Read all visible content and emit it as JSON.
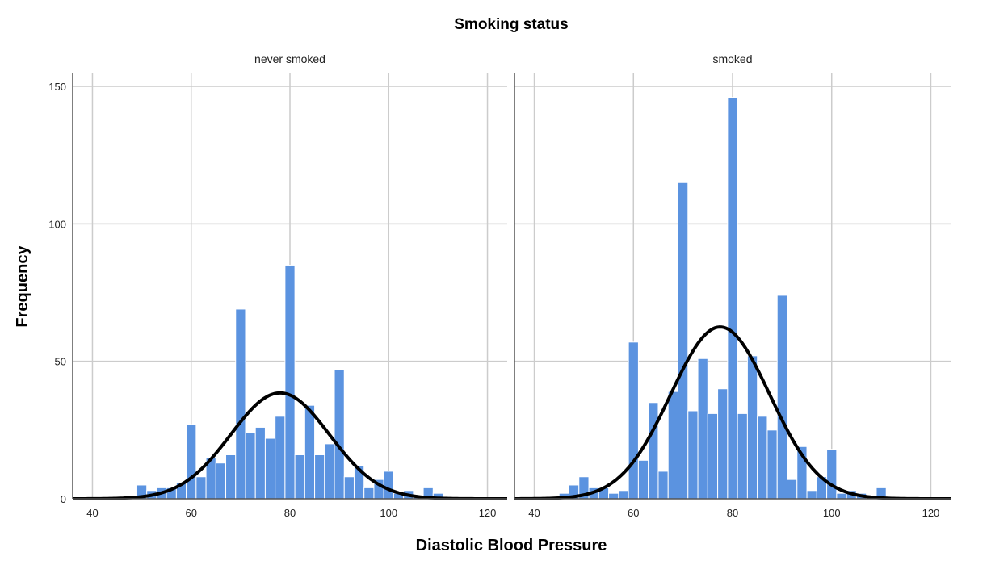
{
  "chart_data": {
    "type": "bar",
    "title": "Smoking status",
    "xlabel": "Diastolic Blood Pressure",
    "ylabel": "Frequency",
    "xlim": [
      36,
      124
    ],
    "ylim": [
      0,
      155
    ],
    "x_ticks": [
      40,
      60,
      80,
      100,
      120
    ],
    "y_ticks": [
      0,
      50,
      100,
      150
    ],
    "bin_width": 2,
    "grid": true,
    "colors": {
      "bar": "#5b93e0",
      "bar_edge": "#ffffff",
      "curve": "#000000",
      "grid": "#cccccc",
      "axis": "#555555"
    },
    "panels": [
      {
        "label": "never smoked",
        "bins": [
          {
            "x": 50,
            "count": 5
          },
          {
            "x": 52,
            "count": 3
          },
          {
            "x": 54,
            "count": 4
          },
          {
            "x": 56,
            "count": 4
          },
          {
            "x": 58,
            "count": 6
          },
          {
            "x": 60,
            "count": 27
          },
          {
            "x": 62,
            "count": 8
          },
          {
            "x": 64,
            "count": 15
          },
          {
            "x": 66,
            "count": 13
          },
          {
            "x": 68,
            "count": 16
          },
          {
            "x": 70,
            "count": 69
          },
          {
            "x": 72,
            "count": 24
          },
          {
            "x": 74,
            "count": 26
          },
          {
            "x": 76,
            "count": 22
          },
          {
            "x": 78,
            "count": 30
          },
          {
            "x": 80,
            "count": 85
          },
          {
            "x": 82,
            "count": 16
          },
          {
            "x": 84,
            "count": 34
          },
          {
            "x": 86,
            "count": 16
          },
          {
            "x": 88,
            "count": 20
          },
          {
            "x": 90,
            "count": 47
          },
          {
            "x": 92,
            "count": 8
          },
          {
            "x": 94,
            "count": 12
          },
          {
            "x": 96,
            "count": 4
          },
          {
            "x": 98,
            "count": 7
          },
          {
            "x": 100,
            "count": 10
          },
          {
            "x": 102,
            "count": 2
          },
          {
            "x": 104,
            "count": 3
          },
          {
            "x": 106,
            "count": 1
          },
          {
            "x": 108,
            "count": 4
          },
          {
            "x": 110,
            "count": 2
          }
        ],
        "normal_curve": {
          "mean": 78,
          "sd": 10,
          "peak": 38.5
        }
      },
      {
        "label": "smoked",
        "bins": [
          {
            "x": 46,
            "count": 2
          },
          {
            "x": 48,
            "count": 5
          },
          {
            "x": 50,
            "count": 8
          },
          {
            "x": 52,
            "count": 4
          },
          {
            "x": 54,
            "count": 4
          },
          {
            "x": 56,
            "count": 2
          },
          {
            "x": 58,
            "count": 3
          },
          {
            "x": 60,
            "count": 57
          },
          {
            "x": 62,
            "count": 14
          },
          {
            "x": 64,
            "count": 35
          },
          {
            "x": 66,
            "count": 10
          },
          {
            "x": 68,
            "count": 39
          },
          {
            "x": 70,
            "count": 115
          },
          {
            "x": 72,
            "count": 32
          },
          {
            "x": 74,
            "count": 51
          },
          {
            "x": 76,
            "count": 31
          },
          {
            "x": 78,
            "count": 40
          },
          {
            "x": 80,
            "count": 146
          },
          {
            "x": 82,
            "count": 31
          },
          {
            "x": 84,
            "count": 52
          },
          {
            "x": 86,
            "count": 30
          },
          {
            "x": 88,
            "count": 25
          },
          {
            "x": 90,
            "count": 74
          },
          {
            "x": 92,
            "count": 7
          },
          {
            "x": 94,
            "count": 19
          },
          {
            "x": 96,
            "count": 3
          },
          {
            "x": 98,
            "count": 8
          },
          {
            "x": 100,
            "count": 18
          },
          {
            "x": 102,
            "count": 2
          },
          {
            "x": 104,
            "count": 3
          },
          {
            "x": 106,
            "count": 2
          },
          {
            "x": 108,
            "count": 1
          },
          {
            "x": 110,
            "count": 4
          }
        ],
        "normal_curve": {
          "mean": 77.5,
          "sd": 10,
          "peak": 62.5
        }
      }
    ]
  }
}
